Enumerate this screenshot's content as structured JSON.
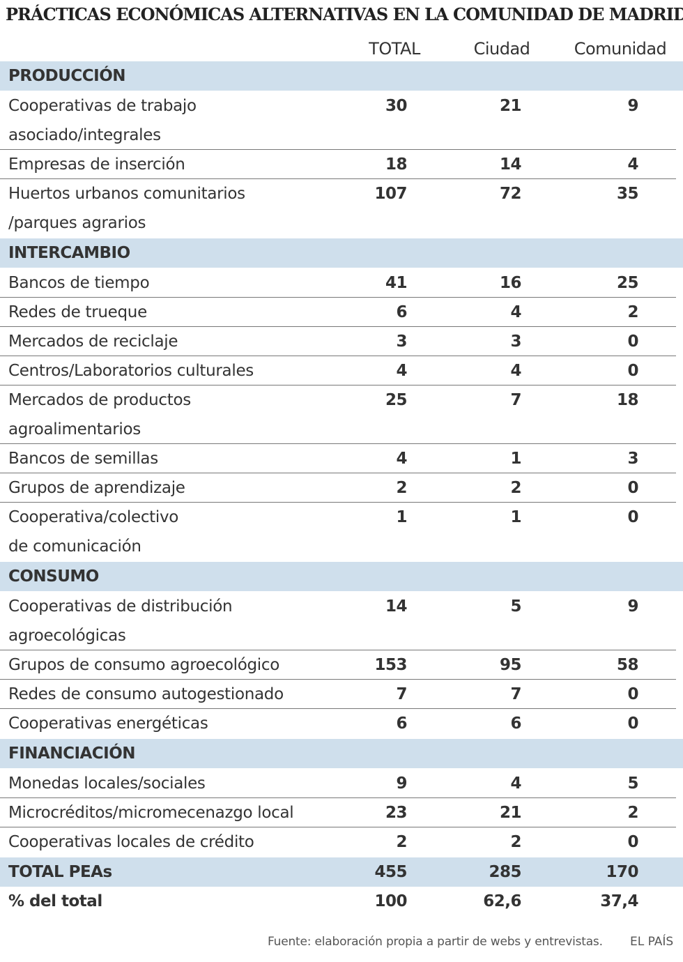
{
  "chart_data": {
    "type": "table",
    "title": "PRÁCTICAS ECONÓMICAS ALTERNATIVAS EN LA COMUNIDAD DE MADRID",
    "columns": [
      "TOTAL",
      "Ciudad",
      "Comunidad"
    ],
    "sections": [
      {
        "name": "PRODUCCIÓN",
        "rows": [
          {
            "label": [
              "Cooperativas de trabajo",
              "asociado/integrales"
            ],
            "total": "30",
            "ciudad": "21",
            "comunidad": "9"
          },
          {
            "label": [
              "Empresas de inserción"
            ],
            "total": "18",
            "ciudad": "14",
            "comunidad": "4"
          },
          {
            "label": [
              "Huertos urbanos comunitarios",
              "/parques agrarios"
            ],
            "total": "107",
            "ciudad": "72",
            "comunidad": "35"
          }
        ]
      },
      {
        "name": "INTERCAMBIO",
        "rows": [
          {
            "label": [
              "Bancos de tiempo"
            ],
            "total": "41",
            "ciudad": "16",
            "comunidad": "25"
          },
          {
            "label": [
              "Redes de trueque"
            ],
            "total": "6",
            "ciudad": "4",
            "comunidad": "2"
          },
          {
            "label": [
              "Mercados de reciclaje"
            ],
            "total": "3",
            "ciudad": "3",
            "comunidad": "0"
          },
          {
            "label": [
              "Centros/Laboratorios culturales"
            ],
            "total": "4",
            "ciudad": "4",
            "comunidad": "0"
          },
          {
            "label": [
              "Mercados de productos",
              "agroalimentarios"
            ],
            "total": "25",
            "ciudad": "7",
            "comunidad": "18"
          },
          {
            "label": [
              "Bancos de semillas"
            ],
            "total": "4",
            "ciudad": "1",
            "comunidad": "3"
          },
          {
            "label": [
              "Grupos de aprendizaje"
            ],
            "total": "2",
            "ciudad": "2",
            "comunidad": "0"
          },
          {
            "label": [
              "Cooperativa/colectivo",
              "de comunicación"
            ],
            "total": "1",
            "ciudad": "1",
            "comunidad": "0"
          }
        ]
      },
      {
        "name": "CONSUMO",
        "rows": [
          {
            "label": [
              "Cooperativas de distribución",
              "agroecológicas"
            ],
            "total": "14",
            "ciudad": "5",
            "comunidad": "9"
          },
          {
            "label": [
              "Grupos de consumo agroecológico"
            ],
            "total": "153",
            "ciudad": "95",
            "comunidad": "58"
          },
          {
            "label": [
              "Redes de consumo autogestionado"
            ],
            "total": "7",
            "ciudad": "7",
            "comunidad": "0"
          },
          {
            "label": [
              "Cooperativas energéticas"
            ],
            "total": "6",
            "ciudad": "6",
            "comunidad": "0"
          }
        ]
      },
      {
        "name": "FINANCIACIÓN",
        "rows": [
          {
            "label": [
              "Monedas locales/sociales"
            ],
            "total": "9",
            "ciudad": "4",
            "comunidad": "5"
          },
          {
            "label": [
              "Microcréditos/micromecenazgo local"
            ],
            "total": "23",
            "ciudad": "21",
            "comunidad": "2"
          },
          {
            "label": [
              "Cooperativas locales de crédito"
            ],
            "total": "2",
            "ciudad": "2",
            "comunidad": "0"
          }
        ]
      }
    ],
    "totals": {
      "label": "TOTAL PEAs",
      "total": "455",
      "ciudad": "285",
      "comunidad": "170"
    },
    "percent": {
      "label": "% del total",
      "total": "100",
      "ciudad": "62,6",
      "comunidad": "37,4"
    }
  },
  "footer": {
    "source": "Fuente: elaboración propia a partir de webs y entrevistas.",
    "brand": "EL PAÍS"
  },
  "colors": {
    "section_band": "#cfdfec",
    "text": "#333333",
    "divider": "#777777"
  }
}
